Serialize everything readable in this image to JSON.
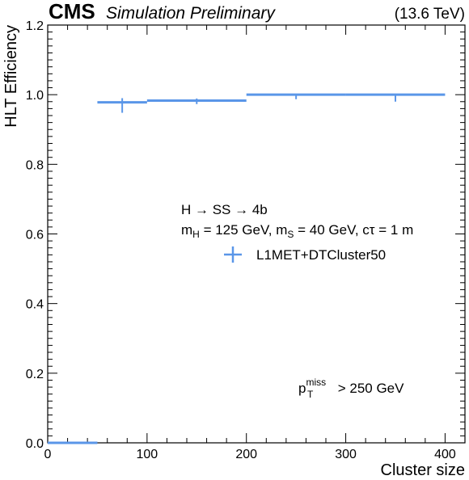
{
  "header": {
    "experiment": "CMS",
    "subtitle": "Simulation Preliminary",
    "energy": "(13.6 TeV)"
  },
  "chart_data": {
    "type": "scatter",
    "xlabel": "Cluster size",
    "ylabel": "HLT Efficiency",
    "xlim": [
      0,
      420
    ],
    "ylim": [
      0,
      1.2
    ],
    "x_ticks": [
      0,
      100,
      200,
      300,
      400
    ],
    "x_tick_labels": [
      "0",
      "100",
      "200",
      "300",
      "400"
    ],
    "y_ticks": [
      0,
      0.2,
      0.4,
      0.6,
      0.8,
      1.0,
      1.2
    ],
    "y_tick_labels": [
      "0.0",
      "0.2",
      "0.4",
      "0.6",
      "0.8",
      "1.0",
      "1.2"
    ],
    "grid": false,
    "legend_position": "center-right",
    "color": "#5a96e8",
    "series": [
      {
        "name": "L1MET+DTCluster50",
        "points": [
          {
            "x_low": 0,
            "x_high": 50,
            "y": 0,
            "err_up": 0,
            "err_down": 0
          },
          {
            "x_low": 50,
            "x_high": 100,
            "y": 0.978,
            "err_up": 0.012,
            "err_down": 0.03
          },
          {
            "x_low": 100,
            "x_high": 200,
            "y": 0.983,
            "err_up": 0.006,
            "err_down": 0.01
          },
          {
            "x_low": 200,
            "x_high": 300,
            "y": 1.0,
            "err_up": 0,
            "err_down": 0.013
          },
          {
            "x_low": 300,
            "x_high": 400,
            "y": 1.0,
            "err_up": 0,
            "err_down": 0.02
          }
        ]
      }
    ],
    "annotations": {
      "process": "H → SS → 4b",
      "params": {
        "mh_prefix": "m",
        "mh_sub": "H",
        "mh_value": " = 125 GeV, m",
        "ms_sub": "S",
        "ms_value": " = 40 GeV, cτ = 1 m"
      },
      "cut": {
        "base": "p",
        "sup": "miss",
        "sub": "T",
        "rest": " > 250 GeV"
      }
    }
  }
}
